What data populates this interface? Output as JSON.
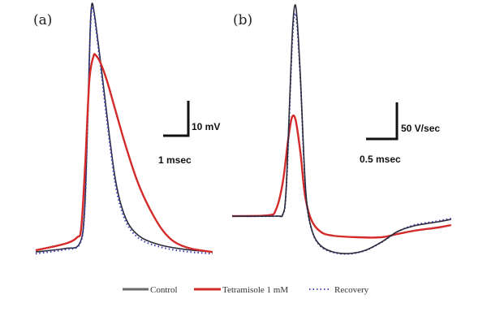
{
  "chart_data": [
    {
      "type": "line",
      "panel_label": "(a)",
      "scale_bar": {
        "x_label": "1 msec",
        "y_label": "10 mV",
        "x_value_ms": 1,
        "y_value": 10
      },
      "x_unit": "msec",
      "y_unit": "mV",
      "series": [
        {
          "name": "Control",
          "color": "#2b2b3a",
          "style": "solid",
          "x": [
            0,
            1.16,
            1.74,
            1.94,
            2.06,
            2.16,
            2.23,
            2.32,
            2.45,
            2.71,
            2.94,
            3.16,
            3.42,
            3.74,
            4.23,
            5.03,
            6.0,
            7.03
          ],
          "y": [
            -0.5,
            0.5,
            1.9,
            11.4,
            37.6,
            63.8,
            72.1,
            69.8,
            62.6,
            47.1,
            32.9,
            21.0,
            12.6,
            7.1,
            3.6,
            1.4,
            0.2,
            -0.5
          ]
        },
        {
          "name": "Tetramisole 1 mM",
          "color": "#d42a2a",
          "style": "solid",
          "x": [
            0,
            1.16,
            1.65,
            1.81,
            1.97,
            2.13,
            2.29,
            2.39,
            2.58,
            2.84,
            3.16,
            3.58,
            4.06,
            4.55,
            5.03,
            5.52,
            6.16,
            7.03
          ],
          "y": [
            0,
            1.9,
            3.8,
            6.7,
            25.7,
            49.5,
            56.7,
            57.1,
            54.8,
            49.5,
            41.2,
            30.5,
            19.8,
            11.9,
            6.0,
            2.4,
            0.5,
            -0.5
          ]
        },
        {
          "name": "Recovery",
          "color": "#3b3bb8",
          "style": "dotted",
          "x": [
            0,
            1.16,
            1.74,
            1.94,
            2.06,
            2.16,
            2.23,
            2.32,
            2.45,
            2.71,
            2.94,
            3.16,
            3.42,
            3.74,
            4.23,
            5.03,
            6.0,
            7.03
          ],
          "y": [
            -1.0,
            0.2,
            1.7,
            10.8,
            36.5,
            62.5,
            71.0,
            69.0,
            61.5,
            45.5,
            31.5,
            19.5,
            11.5,
            6.3,
            2.9,
            0.8,
            -0.4,
            -1.0
          ]
        }
      ]
    },
    {
      "type": "line",
      "panel_label": "(b)",
      "scale_bar": {
        "x_label": "0.5 msec",
        "y_label": "50 V/sec",
        "x_value_ms": 0.5,
        "y_value": 50
      },
      "x_unit": "msec",
      "y_unit": "V/sec",
      "series": [
        {
          "name": "Control",
          "color": "#2b2b3a",
          "style": "solid",
          "x": [
            0,
            0.71,
            0.82,
            0.87,
            0.92,
            0.97,
            1.01,
            1.05,
            1.11,
            1.16,
            1.21,
            1.3,
            1.43,
            1.63,
            1.89,
            2.16,
            2.42,
            2.68,
            2.95,
            3.34,
            3.55
          ],
          "y": [
            0,
            0,
            2.2,
            28.3,
            126,
            235,
            280,
            267,
            180,
            82.6,
            17.4,
            -20.7,
            -39.1,
            -47.8,
            -50,
            -45.7,
            -34.8,
            -20.7,
            -13,
            -7.6,
            -4.3
          ]
        },
        {
          "name": "Tetramisole 1 mM",
          "color": "#d42a2a",
          "style": "solid",
          "x": [
            0,
            0.58,
            0.71,
            0.82,
            0.91,
            0.97,
            1.03,
            1.11,
            1.18,
            1.28,
            1.43,
            1.63,
            2.03,
            2.42,
            2.68,
            2.95,
            3.34,
            3.55
          ],
          "y": [
            0,
            1.1,
            8.7,
            44.6,
            104,
            132,
            128,
            82.6,
            28.3,
            -4.3,
            -20.7,
            -26.1,
            -28.3,
            -28.3,
            -23.9,
            -19.6,
            -15.2,
            -12
          ]
        },
        {
          "name": "Recovery",
          "color": "#3b3bb8",
          "style": "dotted",
          "x": [
            0,
            0.71,
            0.82,
            0.87,
            0.92,
            0.97,
            1.01,
            1.05,
            1.11,
            1.16,
            1.21,
            1.3,
            1.43,
            1.63,
            1.89,
            2.16,
            2.42,
            2.68,
            2.95,
            3.34,
            3.55
          ],
          "y": [
            0,
            0,
            2.0,
            26,
            118,
            225,
            268,
            258,
            176,
            80,
            16,
            -21,
            -40,
            -48.5,
            -50.5,
            -46,
            -35,
            -21,
            -12,
            -6.5,
            -3
          ]
        }
      ]
    }
  ],
  "legend": {
    "position": "bottom",
    "items": [
      {
        "label": "Control",
        "color": "#6a6a6a",
        "style": "solid"
      },
      {
        "label": "Tetramisole 1 mM",
        "color": "#d42a2a",
        "style": "solid"
      },
      {
        "label": "Recovery",
        "color": "#4a4ac0",
        "style": "dotted"
      }
    ]
  }
}
